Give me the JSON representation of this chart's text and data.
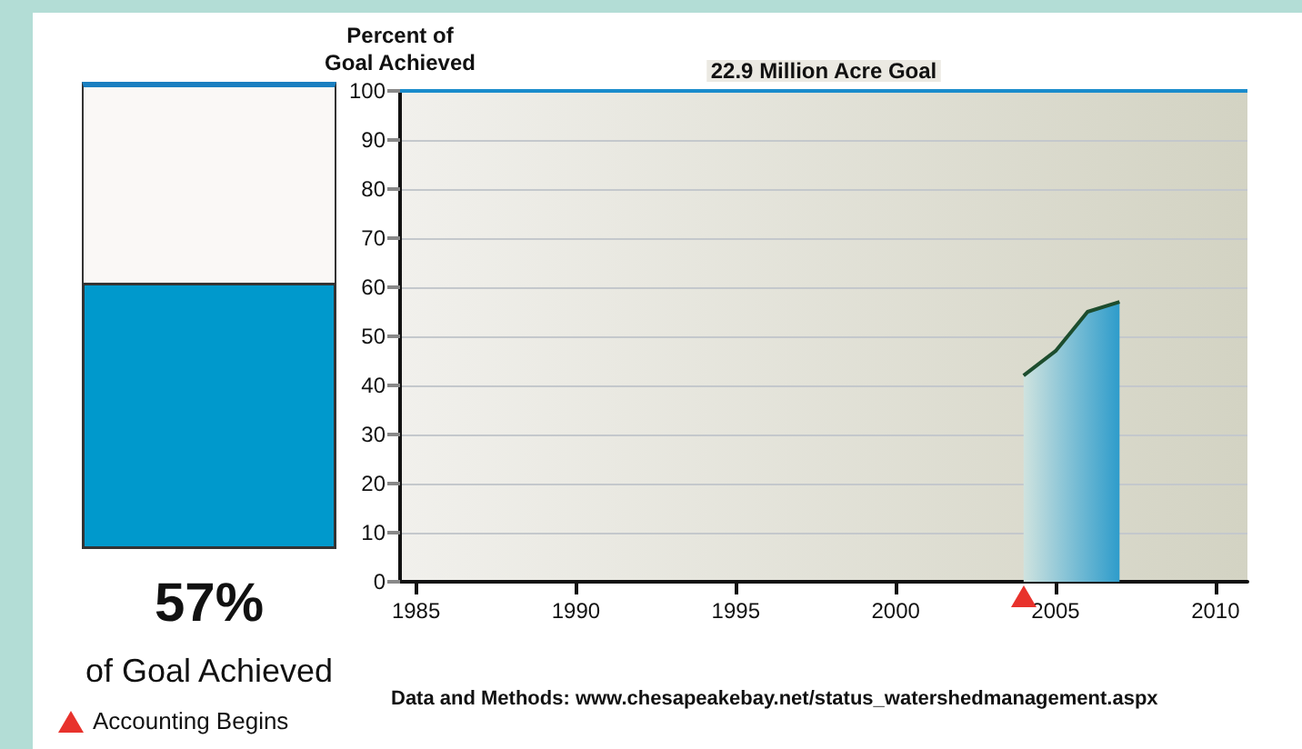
{
  "chart_data": [
    {
      "type": "other",
      "categories": [
        null
      ],
      "values": [
        57
      ],
      "value_labels": [
        "57%"
      ],
      "color": "#0099cc",
      "xlabel": "of Goal Achieved"
    },
    {
      "type": "area",
      "ylabel": "Percent of\nGoal Achieved",
      "x": [
        2004,
        2005,
        2006,
        2007
      ],
      "series": [
        {
          "color": "#2e9ccb",
          "values": [
            42,
            47,
            55,
            57
          ]
        }
      ],
      "xlim": [
        1984.5,
        2011
      ],
      "xticks": [
        1985,
        1990,
        1995,
        2000,
        2005,
        2010
      ],
      "ylim": [
        0,
        100
      ],
      "yticks": [
        0,
        10,
        20,
        30,
        40,
        50,
        60,
        70,
        80,
        90,
        100
      ],
      "grid": "y",
      "ref_lines": [
        {
          "axis": "y",
          "value": 100,
          "label": "22.9 Million Acre Goal",
          "color": "#1a8ccc"
        }
      ],
      "annotations": [
        "Accounting Begins",
        "Data and Methods: www.chesapeakebay.net/status_watershedmanagement.aspx"
      ]
    }
  ]
}
